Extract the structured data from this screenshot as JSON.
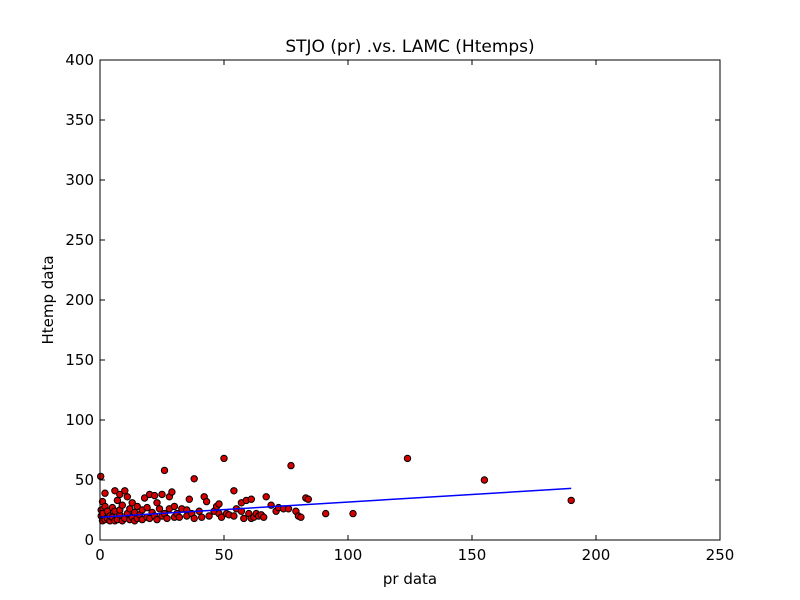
{
  "chart_data": {
    "type": "scatter",
    "title": "STJO (pr) .vs. LAMC (Htemps)",
    "xlabel": "pr data",
    "ylabel": "Htemp data",
    "xlim": [
      0,
      250
    ],
    "ylim": [
      0,
      400
    ],
    "xticks": [
      "0",
      "50",
      "100",
      "150",
      "200",
      "250"
    ],
    "yticks": [
      "0",
      "50",
      "100",
      "150",
      "200",
      "250",
      "300",
      "350",
      "400"
    ],
    "grid": false,
    "colors": {
      "points": "#d60000",
      "fit_line": "#0000ff"
    },
    "points": [
      [
        0.3,
        53
      ],
      [
        0.5,
        25
      ],
      [
        0.5,
        20
      ],
      [
        1,
        32
      ],
      [
        1,
        16
      ],
      [
        1,
        22
      ],
      [
        2,
        17
      ],
      [
        2,
        28
      ],
      [
        2,
        39
      ],
      [
        3,
        18
      ],
      [
        3,
        24
      ],
      [
        4,
        16
      ],
      [
        4,
        20
      ],
      [
        5,
        27
      ],
      [
        5,
        19
      ],
      [
        6,
        41
      ],
      [
        6,
        16
      ],
      [
        6,
        24
      ],
      [
        7,
        17
      ],
      [
        7,
        33
      ],
      [
        8,
        21
      ],
      [
        8,
        38
      ],
      [
        8,
        25
      ],
      [
        9,
        16
      ],
      [
        9,
        29
      ],
      [
        10,
        18
      ],
      [
        10,
        41
      ],
      [
        11,
        22
      ],
      [
        11,
        36
      ],
      [
        12,
        17
      ],
      [
        12,
        26
      ],
      [
        13,
        19
      ],
      [
        13,
        31
      ],
      [
        14,
        16
      ],
      [
        14,
        23
      ],
      [
        15,
        28
      ],
      [
        15,
        18
      ],
      [
        16,
        21
      ],
      [
        17,
        17
      ],
      [
        17,
        25
      ],
      [
        18,
        35
      ],
      [
        19,
        19
      ],
      [
        19,
        27
      ],
      [
        20,
        38
      ],
      [
        20,
        18
      ],
      [
        21,
        23
      ],
      [
        22,
        20
      ],
      [
        22,
        37
      ],
      [
        23,
        31
      ],
      [
        23,
        17
      ],
      [
        24,
        26
      ],
      [
        25,
        38
      ],
      [
        25,
        20
      ],
      [
        26,
        58
      ],
      [
        26,
        22
      ],
      [
        27,
        18
      ],
      [
        28,
        36
      ],
      [
        28,
        26
      ],
      [
        29,
        40
      ],
      [
        30,
        19
      ],
      [
        30,
        28
      ],
      [
        31,
        22
      ],
      [
        32,
        19
      ],
      [
        33,
        26
      ],
      [
        35,
        25
      ],
      [
        35,
        20
      ],
      [
        36,
        34
      ],
      [
        37,
        22
      ],
      [
        38,
        51
      ],
      [
        38,
        18
      ],
      [
        40,
        24
      ],
      [
        41,
        19
      ],
      [
        42,
        36
      ],
      [
        43,
        32
      ],
      [
        44,
        20
      ],
      [
        46,
        24
      ],
      [
        47,
        28
      ],
      [
        48,
        22
      ],
      [
        48,
        30
      ],
      [
        49,
        19
      ],
      [
        50,
        68
      ],
      [
        51,
        22
      ],
      [
        52,
        21
      ],
      [
        54,
        20
      ],
      [
        54,
        41
      ],
      [
        55,
        26
      ],
      [
        57,
        24
      ],
      [
        57,
        31
      ],
      [
        58,
        18
      ],
      [
        59,
        33
      ],
      [
        60,
        22
      ],
      [
        61,
        34
      ],
      [
        61,
        18
      ],
      [
        62,
        19
      ],
      [
        63,
        22
      ],
      [
        64,
        20
      ],
      [
        65,
        21
      ],
      [
        66,
        19
      ],
      [
        67,
        36
      ],
      [
        69,
        29
      ],
      [
        71,
        24
      ],
      [
        72,
        27
      ],
      [
        74,
        26
      ],
      [
        76,
        26
      ],
      [
        77,
        62
      ],
      [
        79,
        24
      ],
      [
        80,
        20
      ],
      [
        81,
        19
      ],
      [
        83,
        35
      ],
      [
        84,
        34
      ],
      [
        91,
        22
      ],
      [
        102,
        22
      ],
      [
        124,
        68
      ],
      [
        155,
        50
      ],
      [
        190,
        33
      ]
    ],
    "fit_line": {
      "x": [
        0,
        190
      ],
      "y": [
        19,
        43
      ]
    }
  }
}
